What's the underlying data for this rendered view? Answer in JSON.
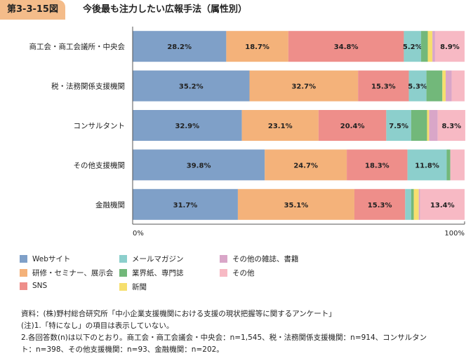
{
  "header": {
    "figure_label": "第3-3-15図",
    "title": "今後最も注力したい広報手法（属性別）"
  },
  "chart_data": {
    "type": "bar",
    "orientation": "horizontal",
    "stacked": true,
    "percent": true,
    "categories": [
      "商工会・商工会議所・中央会",
      "税・法務関係支援機関",
      "コンサルタント",
      "その他支援機関",
      "金融機関"
    ],
    "series": [
      {
        "name": "Webサイト",
        "color": "#7fa0c8",
        "values": [
          28.2,
          35.2,
          32.9,
          39.8,
          31.7
        ],
        "labels": [
          "28.2%",
          "35.2%",
          "32.9%",
          "39.8%",
          "31.7%"
        ]
      },
      {
        "name": "研修・セミナー、展示会",
        "color": "#f4b27a",
        "values": [
          18.7,
          32.7,
          23.1,
          24.7,
          35.1
        ],
        "labels": [
          "18.7%",
          "32.7%",
          "23.1%",
          "24.7%",
          "35.1%"
        ]
      },
      {
        "name": "SNS",
        "color": "#ee8e8a",
        "values": [
          34.8,
          15.3,
          20.4,
          18.3,
          15.3
        ],
        "labels": [
          "34.8%",
          "15.3%",
          "20.4%",
          "18.3%",
          "15.3%"
        ]
      },
      {
        "name": "メールマガジン",
        "color": "#8ccfcc",
        "values": [
          5.2,
          5.3,
          7.5,
          11.8,
          1.8
        ],
        "labels": [
          "5.2%",
          "5.3%",
          "7.5%",
          "11.8%",
          ""
        ]
      },
      {
        "name": "業界紙、専門誌",
        "color": "#72b87a",
        "values": [
          2.0,
          4.8,
          4.8,
          1.1,
          0.8
        ],
        "labels": [
          "",
          "",
          "",
          "",
          ""
        ]
      },
      {
        "name": "新聞",
        "color": "#f6df6e",
        "values": [
          1.4,
          1.0,
          0.6,
          0.0,
          1.5
        ],
        "labels": [
          "",
          "",
          "",
          "",
          ""
        ]
      },
      {
        "name": "その他の雑誌、書籍",
        "color": "#d9a6c8",
        "values": [
          0.8,
          1.8,
          2.6,
          0.0,
          0.4
        ],
        "labels": [
          "",
          "",
          "",
          "",
          ""
        ]
      },
      {
        "name": "その他",
        "color": "#f7b9c4",
        "values": [
          8.9,
          3.9,
          8.3,
          4.3,
          13.4
        ],
        "labels": [
          "8.9%",
          "",
          "8.3%",
          "",
          "13.4%"
        ]
      }
    ],
    "xlim": [
      0,
      100
    ],
    "x_tick_labels": [
      "0%",
      "100%"
    ],
    "legend_position": "bottom",
    "grid": false
  },
  "notes": [
    "資料：(株)野村総合研究所「中小企業支援機関における支援の現状把握等に関するアンケート」",
    "(注)1.「特になし」の項目は表示していない。",
    "2.各回答数(n)は以下のとおり。商工会・商工会議会・中央会：n=1,545、税・法務関係支援機関：n=914、コンサルタン",
    "ト：n=398、その他支援機関：n=93、金融機関：n=202。"
  ]
}
